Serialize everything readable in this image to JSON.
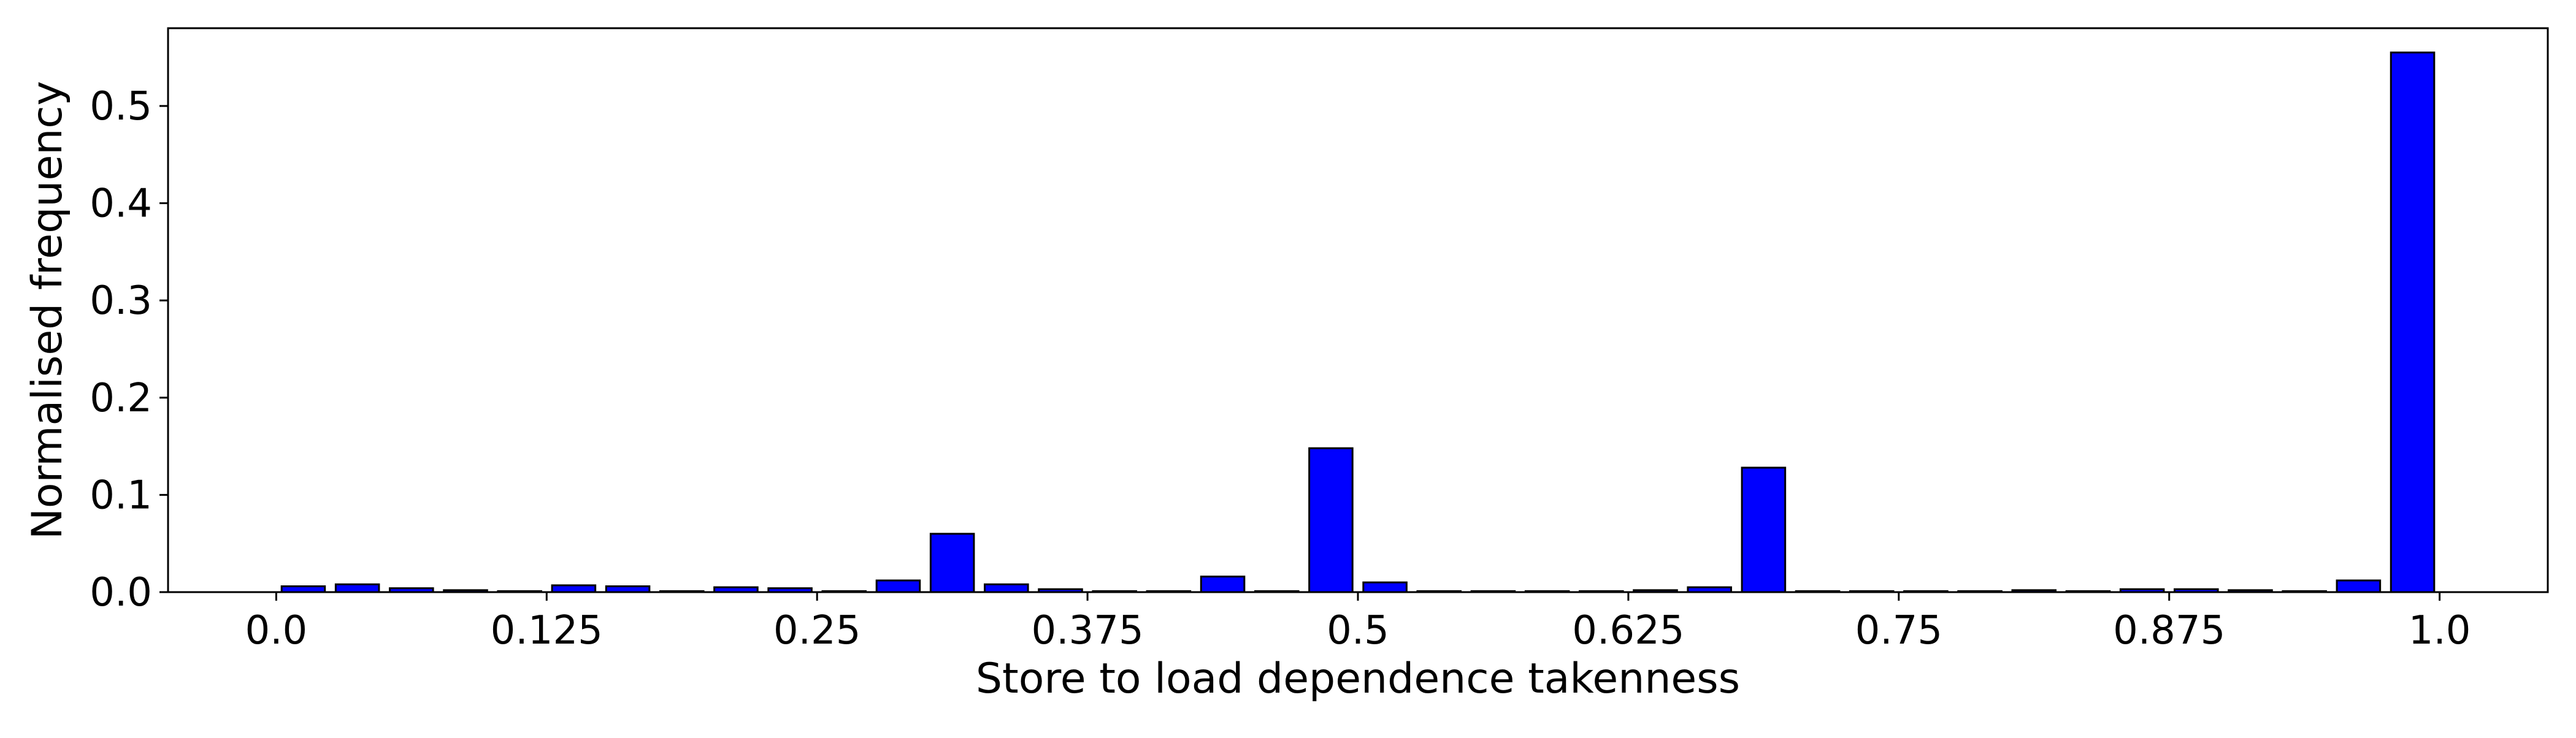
{
  "chart_data": {
    "type": "bar",
    "title": "",
    "xlabel": "Store to load dependence takenness",
    "ylabel": "Normalised frequency",
    "xlim": [
      -0.05,
      1.05
    ],
    "ylim": [
      0.0,
      0.58
    ],
    "xticks": [
      0.0,
      0.125,
      0.25,
      0.375,
      0.5,
      0.625,
      0.75,
      0.875,
      1.0
    ],
    "xtick_labels": [
      "0.0",
      "0.125",
      "0.25",
      "0.375",
      "0.5",
      "0.625",
      "0.75",
      "0.875",
      "1.0"
    ],
    "yticks": [
      0.0,
      0.1,
      0.2,
      0.3,
      0.4,
      0.5
    ],
    "ytick_labels": [
      "0.0",
      "0.1",
      "0.2",
      "0.3",
      "0.4",
      "0.5"
    ],
    "grid": false,
    "bar_color": "#0000ff",
    "edge_color": "#000000",
    "bar_width": 0.02,
    "x": [
      0.0125,
      0.0375,
      0.0625,
      0.0875,
      0.1125,
      0.1375,
      0.1625,
      0.1875,
      0.2125,
      0.2375,
      0.2625,
      0.2875,
      0.3125,
      0.3375,
      0.3625,
      0.3875,
      0.4125,
      0.4375,
      0.4625,
      0.4875,
      0.5125,
      0.5375,
      0.5625,
      0.5875,
      0.6125,
      0.6375,
      0.6625,
      0.6875,
      0.7125,
      0.7375,
      0.7625,
      0.7875,
      0.8125,
      0.8375,
      0.8625,
      0.8875,
      0.9125,
      0.9375,
      0.9625,
      0.9875
    ],
    "values": [
      0.006,
      0.008,
      0.004,
      0.002,
      0.001,
      0.007,
      0.006,
      0.001,
      0.005,
      0.004,
      0.001,
      0.012,
      0.06,
      0.008,
      0.003,
      0.001,
      0.001,
      0.016,
      0.001,
      0.148,
      0.01,
      0.001,
      0.001,
      0.001,
      0.001,
      0.002,
      0.005,
      0.128,
      0.001,
      0.001,
      0.001,
      0.001,
      0.002,
      0.001,
      0.003,
      0.003,
      0.002,
      0.001,
      0.012,
      0.555
    ]
  }
}
